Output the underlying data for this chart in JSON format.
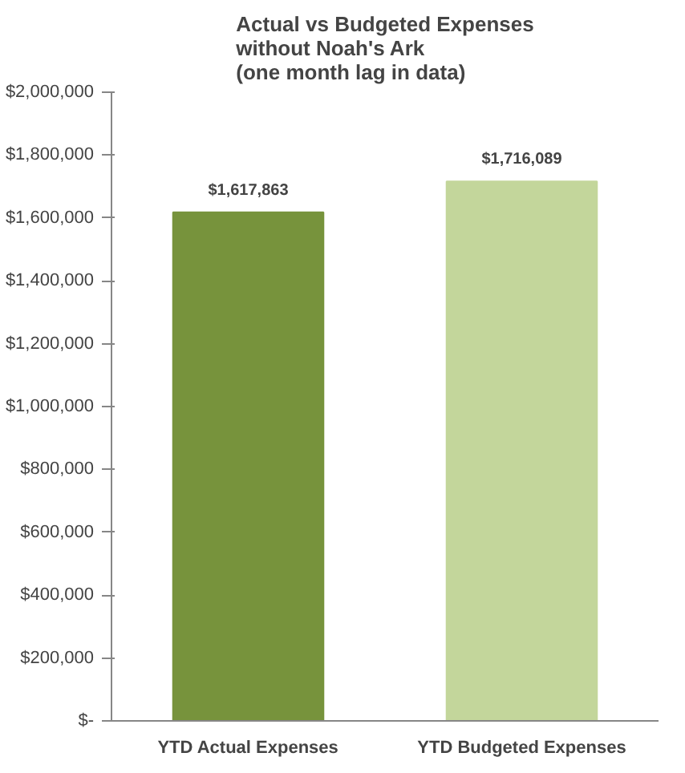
{
  "chart_data": {
    "type": "bar",
    "title": "Actual vs Budgeted Expenses\nwithout Noah's Ark\n(one month lag in data)",
    "categories": [
      "YTD Actual Expenses",
      "YTD Budgeted Expenses"
    ],
    "values": [
      1617863,
      1716089
    ],
    "colors": [
      "#77933c",
      "#c3d69b"
    ],
    "value_labels": [
      "$1,617,863",
      "$1,716,089"
    ],
    "ylim": [
      0,
      2000000
    ],
    "yticks": [
      {
        "value": 0,
        "label": "$-"
      },
      {
        "value": 200000,
        "label": "$200,000"
      },
      {
        "value": 400000,
        "label": "$400,000"
      },
      {
        "value": 600000,
        "label": "$600,000"
      },
      {
        "value": 800000,
        "label": "$800,000"
      },
      {
        "value": 1000000,
        "label": "$1,000,000"
      },
      {
        "value": 1200000,
        "label": "$1,200,000"
      },
      {
        "value": 1400000,
        "label": "$1,400,000"
      },
      {
        "value": 1600000,
        "label": "$1,600,000"
      },
      {
        "value": 1800000,
        "label": "$1,800,000"
      },
      {
        "value": 2000000,
        "label": "$2,000,000"
      }
    ],
    "grid": false
  }
}
